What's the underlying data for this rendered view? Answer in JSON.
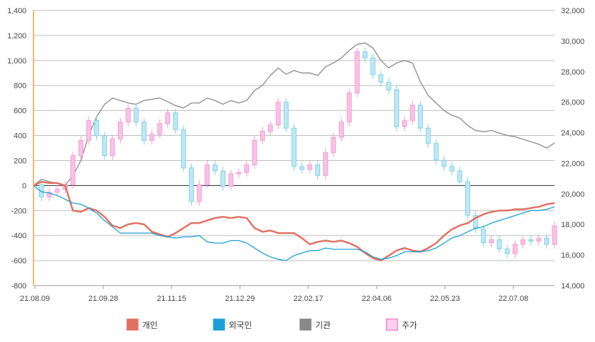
{
  "chart_data": {
    "type": "line",
    "title": "",
    "x_ticks": [
      "21.08.09",
      "21.09.28",
      "21.11.15",
      "21.12.29",
      "22.02.17",
      "22.04.06",
      "22.05.23",
      "22.07.08"
    ],
    "y_left": {
      "range": [
        -800,
        1400
      ],
      "ticks": [
        "1,400",
        "1,200",
        "1,000",
        "800",
        "600",
        "400",
        "200",
        "0",
        "-200",
        "-400",
        "-600",
        "-800"
      ]
    },
    "y_right": {
      "range": [
        14000,
        32000
      ],
      "ticks": [
        "32,000",
        "30,000",
        "28,000",
        "26,000",
        "24,000",
        "22,000",
        "20,000",
        "18,000",
        "16,000",
        "14,000"
      ]
    },
    "grid": true,
    "legend_position": "bottom",
    "series": [
      {
        "name": "개인",
        "color": "#e07060",
        "axis": "left",
        "values": [
          0,
          30,
          20,
          20,
          0,
          -200,
          -210,
          -180,
          -200,
          -250,
          -320,
          -340,
          -310,
          -300,
          -310,
          -370,
          -390,
          -410,
          -380,
          -340,
          -300,
          -300,
          -280,
          -260,
          -250,
          -260,
          -250,
          -260,
          -340,
          -370,
          -360,
          -380,
          -380,
          -380,
          -420,
          -470,
          -450,
          -440,
          -450,
          -440,
          -460,
          -490,
          -540,
          -580,
          -600,
          -560,
          -520,
          -500,
          -520,
          -530,
          -500,
          -460,
          -400,
          -350,
          -320,
          -300,
          -260,
          -230,
          -210,
          -200,
          -200,
          -190,
          -190,
          -180,
          -170,
          -150,
          -140
        ]
      },
      {
        "name": "외국인",
        "color": "#1a9fd6",
        "axis": "left",
        "values": [
          0,
          -50,
          -60,
          -80,
          -110,
          -140,
          -150,
          -180,
          -220,
          -280,
          -330,
          -380,
          -380,
          -380,
          -380,
          -380,
          -400,
          -410,
          -420,
          -410,
          -410,
          -400,
          -450,
          -460,
          -460,
          -440,
          -440,
          -460,
          -500,
          -540,
          -570,
          -590,
          -600,
          -560,
          -540,
          -520,
          -520,
          -500,
          -510,
          -510,
          -510,
          -510,
          -530,
          -570,
          -590,
          -580,
          -560,
          -530,
          -530,
          -530,
          -520,
          -500,
          -460,
          -420,
          -400,
          -370,
          -340,
          -330,
          -300,
          -280,
          -260,
          -240,
          -220,
          -200,
          -200,
          -190,
          -170
        ]
      },
      {
        "name": "기관",
        "color": "#888888",
        "axis": "left",
        "values": [
          0,
          50,
          30,
          20,
          0,
          80,
          200,
          400,
          550,
          650,
          700,
          680,
          660,
          650,
          680,
          690,
          700,
          670,
          640,
          620,
          660,
          660,
          700,
          680,
          650,
          680,
          660,
          680,
          760,
          800,
          880,
          940,
          890,
          920,
          900,
          900,
          880,
          950,
          980,
          1020,
          1080,
          1130,
          1140,
          1100,
          1000,
          940,
          980,
          1000,
          980,
          830,
          720,
          660,
          600,
          560,
          540,
          480,
          440,
          430,
          440,
          420,
          400,
          390,
          370,
          350,
          330,
          300,
          340
        ]
      },
      {
        "name": "주가",
        "color": "#f39ad4",
        "axis": "right",
        "values": [
          20600,
          19800,
          20100,
          20300,
          20600,
          22500,
          23500,
          24800,
          23800,
          22500,
          23600,
          24700,
          25600,
          24700,
          23500,
          23900,
          24600,
          25300,
          24200,
          21700,
          19500,
          20600,
          21900,
          21500,
          20500,
          21300,
          21400,
          21900,
          23500,
          24100,
          24500,
          26000,
          24300,
          21800,
          21600,
          21900,
          21200,
          22700,
          23700,
          24700,
          26600,
          29300,
          28900,
          27800,
          27300,
          26800,
          24400,
          24800,
          25800,
          24300,
          23300,
          22200,
          21800,
          21500,
          20800,
          18600,
          17700,
          16800,
          17000,
          16400,
          16100,
          16700,
          17000,
          16900,
          17100,
          16700,
          17900
        ]
      }
    ]
  }
}
